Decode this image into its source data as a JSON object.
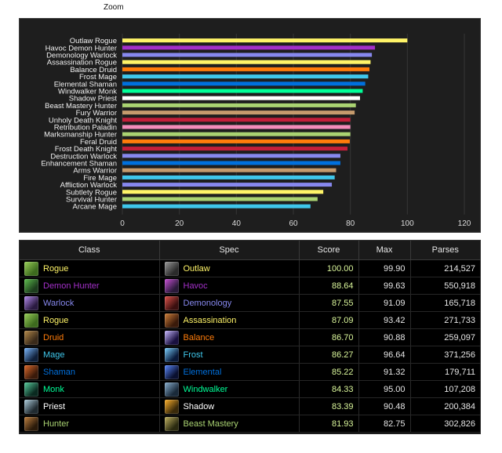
{
  "chart_data": {
    "type": "bar",
    "orientation": "horizontal",
    "title": "Zoom",
    "xlim": [
      0,
      120
    ],
    "xticks": [
      0,
      20,
      40,
      60,
      80,
      100,
      120
    ],
    "grid": true,
    "categories": [
      "Outlaw Rogue",
      "Havoc Demon Hunter",
      "Demonology Warlock",
      "Assassination Rogue",
      "Balance Druid",
      "Frost Mage",
      "Elemental Shaman",
      "Windwalker Monk",
      "Shadow Priest",
      "Beast Mastery Hunter",
      "Fury Warrior",
      "Unholy Death Knight",
      "Retribution Paladin",
      "Marksmanship Hunter",
      "Feral Druid",
      "Frost Death Knight",
      "Destruction Warlock",
      "Enhancement Shaman",
      "Arms Warrior",
      "Fire Mage",
      "Affliction Warlock",
      "Subtlety Rogue",
      "Survival Hunter",
      "Arcane Mage"
    ],
    "values": [
      100.0,
      88.64,
      87.55,
      87.09,
      86.7,
      86.27,
      85.22,
      84.33,
      83.39,
      81.93,
      81.5,
      80.0,
      80.0,
      80.0,
      79.8,
      79.0,
      76.5,
      76.5,
      75.0,
      74.5,
      73.5,
      70.5,
      68.5,
      66.0
    ],
    "colors": [
      "#fff468",
      "#a330c9",
      "#8788ee",
      "#fff468",
      "#ff7c0a",
      "#3fc7eb",
      "#0070dd",
      "#00ff98",
      "#ffffff",
      "#aad372",
      "#c69b6d",
      "#c41e3a",
      "#f48cba",
      "#aad372",
      "#ff7c0a",
      "#c41e3a",
      "#8788ee",
      "#0070dd",
      "#c69b6d",
      "#3fc7eb",
      "#8788ee",
      "#fff468",
      "#aad372",
      "#3fc7eb"
    ]
  },
  "table": {
    "headers": {
      "class": "Class",
      "spec": "Spec",
      "score": "Score",
      "max": "Max",
      "parses": "Parses"
    },
    "rows": [
      {
        "class": "Rogue",
        "class_color": "#fff468",
        "class_icon": "rogue-icon",
        "spec": "Outlaw",
        "spec_icon": "outlaw-icon",
        "score": "100.00",
        "max": "99.90",
        "parses": "214,527"
      },
      {
        "class": "Demon Hunter",
        "class_color": "#a330c9",
        "class_icon": "demon-hunter-icon",
        "spec": "Havoc",
        "spec_icon": "havoc-icon",
        "score": "88.64",
        "max": "99.63",
        "parses": "550,918"
      },
      {
        "class": "Warlock",
        "class_color": "#8788ee",
        "class_icon": "warlock-icon",
        "spec": "Demonology",
        "spec_icon": "demonology-icon",
        "score": "87.55",
        "max": "91.09",
        "parses": "165,718"
      },
      {
        "class": "Rogue",
        "class_color": "#fff468",
        "class_icon": "rogue-icon",
        "spec": "Assassination",
        "spec_icon": "assassination-icon",
        "score": "87.09",
        "max": "93.42",
        "parses": "271,733"
      },
      {
        "class": "Druid",
        "class_color": "#ff7c0a",
        "class_icon": "druid-icon",
        "spec": "Balance",
        "spec_icon": "balance-icon",
        "score": "86.70",
        "max": "90.88",
        "parses": "259,097"
      },
      {
        "class": "Mage",
        "class_color": "#3fc7eb",
        "class_icon": "mage-icon",
        "spec": "Frost",
        "spec_icon": "frost-icon",
        "score": "86.27",
        "max": "96.64",
        "parses": "371,256"
      },
      {
        "class": "Shaman",
        "class_color": "#0070dd",
        "class_icon": "shaman-icon",
        "spec": "Elemental",
        "spec_icon": "elemental-icon",
        "score": "85.22",
        "max": "91.32",
        "parses": "179,711"
      },
      {
        "class": "Monk",
        "class_color": "#00ff98",
        "class_icon": "monk-icon",
        "spec": "Windwalker",
        "spec_icon": "windwalker-icon",
        "score": "84.33",
        "max": "95.00",
        "parses": "107,208"
      },
      {
        "class": "Priest",
        "class_color": "#ffffff",
        "class_icon": "priest-icon",
        "spec": "Shadow",
        "spec_icon": "shadow-icon",
        "score": "83.39",
        "max": "90.48",
        "parses": "200,384"
      },
      {
        "class": "Hunter",
        "class_color": "#aad372",
        "class_icon": "hunter-icon",
        "spec": "Beast Mastery",
        "spec_icon": "beast-mastery-icon",
        "score": "81.93",
        "max": "82.75",
        "parses": "302,826"
      }
    ]
  }
}
